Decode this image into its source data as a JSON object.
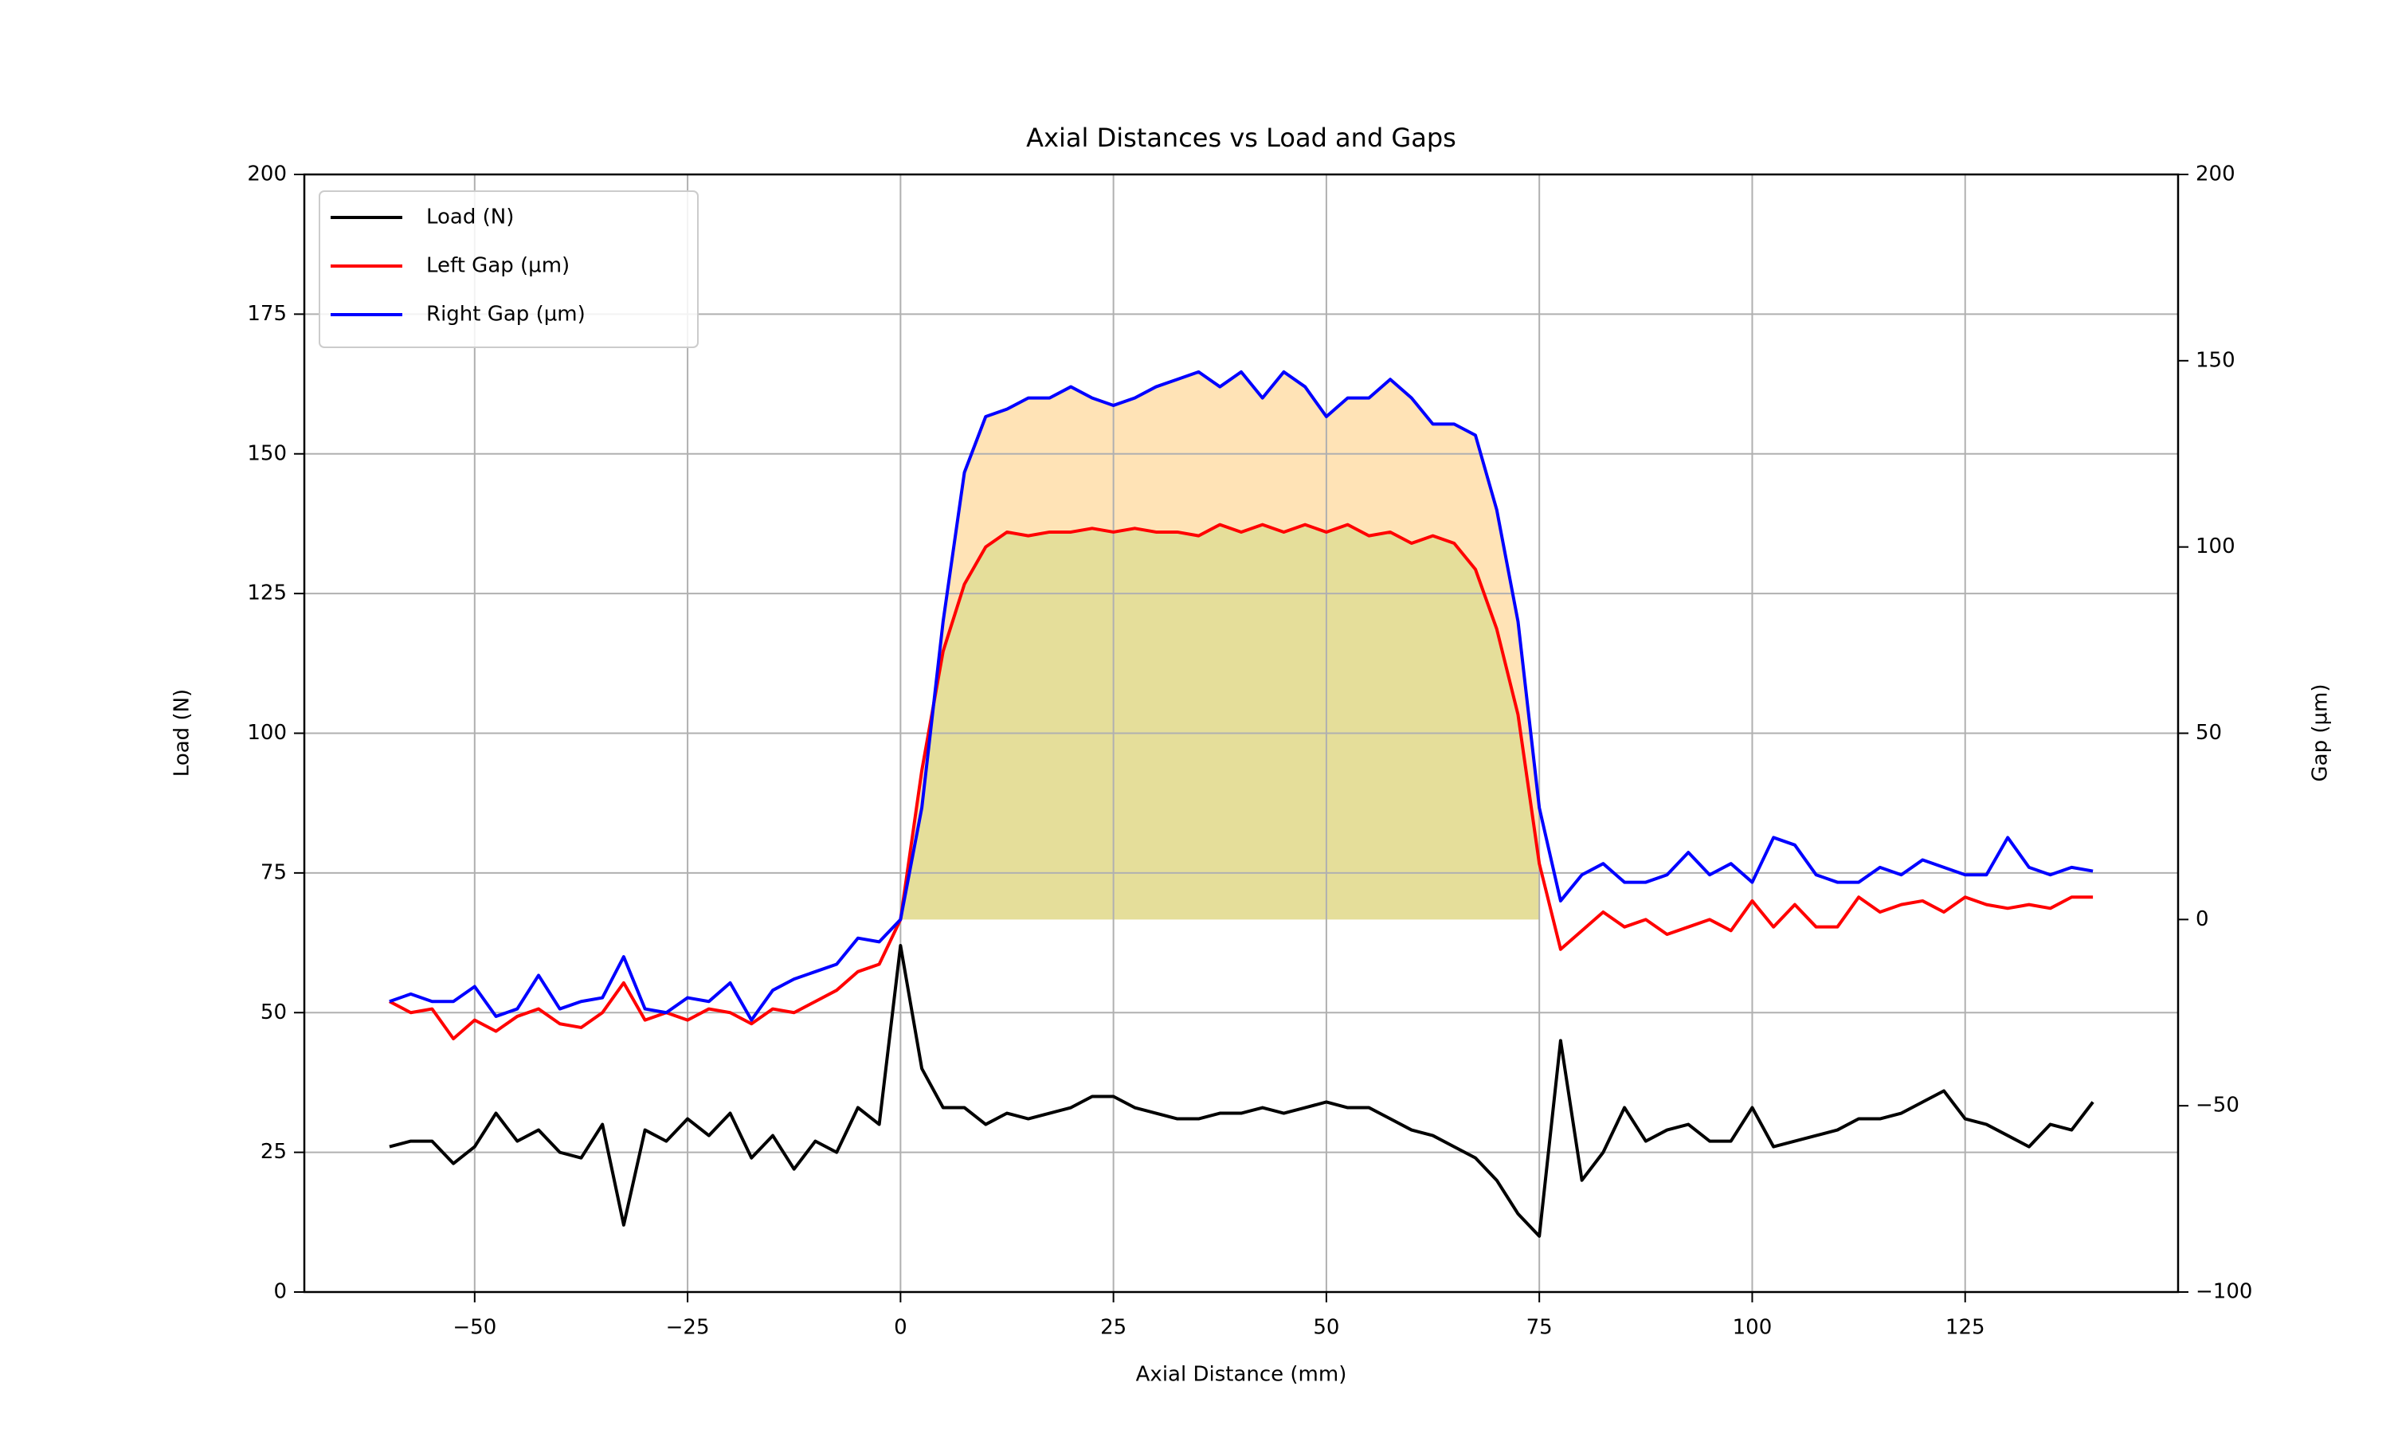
{
  "chart_data": {
    "type": "line",
    "title": "Axial Distances vs Load and Gaps",
    "x_label": "Axial Distance (mm)",
    "y_label": "Load (N)",
    "y2_label": "Gap (µm)",
    "x": [
      -60,
      -57.5,
      -55,
      -52.5,
      -50,
      -47.5,
      -45,
      -42.5,
      -40,
      -37.5,
      -35,
      -32.5,
      -30,
      -27.5,
      -25,
      -22.5,
      -20,
      -17.5,
      -15,
      -12.5,
      -10,
      -7.5,
      -5,
      -2.5,
      0,
      2.5,
      5,
      7.5,
      10,
      12.5,
      15,
      17.5,
      20,
      22.5,
      25,
      27.5,
      30,
      32.5,
      35,
      37.5,
      40,
      42.5,
      45,
      47.5,
      50,
      52.5,
      55,
      57.5,
      60,
      62.5,
      65,
      67.5,
      70,
      72.5,
      75,
      77.5,
      80,
      82.5,
      85,
      87.5,
      90,
      92.5,
      95,
      97.5,
      100,
      102.5,
      105,
      107.5,
      110,
      112.5,
      115,
      117.5,
      120,
      122.5,
      125,
      127.5,
      130,
      132.5,
      135,
      137.5,
      140
    ],
    "series": [
      {
        "name": "Load (N)",
        "color": "#000000",
        "axis": "y",
        "values": [
          26,
          27,
          27,
          23,
          26,
          32,
          27,
          29,
          25,
          24,
          30,
          12,
          29,
          27,
          31,
          28,
          32,
          24,
          28,
          22,
          27,
          25,
          33,
          30,
          62,
          40,
          33,
          33,
          30,
          32,
          31,
          32,
          33,
          35,
          35,
          33,
          32,
          31,
          31,
          32,
          32,
          33,
          32,
          33,
          34,
          33,
          33,
          31,
          29,
          28,
          26,
          24,
          20,
          14,
          10,
          45,
          20,
          25,
          33,
          27,
          29,
          30,
          27,
          27,
          33,
          26,
          27,
          28,
          29,
          31,
          31,
          32,
          34,
          36,
          31,
          30,
          28,
          26,
          30,
          29,
          34
        ]
      },
      {
        "name": "Left Gap (µm)",
        "color": "#ff0000",
        "axis": "y2",
        "values": [
          -22,
          -25,
          -24,
          -32,
          -27,
          -30,
          -26,
          -24,
          -28,
          -29,
          -25,
          -17,
          -27,
          -25,
          -27,
          -24,
          -25,
          -28,
          -24,
          -25,
          -22,
          -19,
          -14,
          -12,
          0,
          40,
          72,
          90,
          100,
          104,
          103,
          104,
          104,
          105,
          104,
          105,
          104,
          104,
          103,
          106,
          104,
          106,
          104,
          106,
          104,
          106,
          103,
          104,
          101,
          103,
          101,
          94,
          78,
          55,
          15,
          -8,
          -3,
          2,
          -2,
          0,
          -4,
          -2,
          0,
          -3,
          5,
          -2,
          4,
          -2,
          -2,
          6,
          2,
          4,
          5,
          2,
          6,
          4,
          3,
          4,
          3,
          6,
          6
        ]
      },
      {
        "name": "Right Gap (µm)",
        "color": "#0000ff",
        "axis": "y2",
        "values": [
          -22,
          -20,
          -22,
          -22,
          -18,
          -26,
          -24,
          -15,
          -24,
          -22,
          -21,
          -10,
          -24,
          -25,
          -21,
          -22,
          -17,
          -27,
          -19,
          -16,
          -14,
          -12,
          -5,
          -6,
          0,
          30,
          80,
          120,
          135,
          137,
          140,
          140,
          143,
          140,
          138,
          140,
          143,
          145,
          147,
          143,
          147,
          140,
          147,
          143,
          135,
          140,
          140,
          145,
          140,
          133,
          133,
          130,
          110,
          80,
          30,
          5,
          12,
          15,
          10,
          10,
          12,
          18,
          12,
          15,
          10,
          22,
          20,
          12,
          10,
          10,
          14,
          12,
          16,
          14,
          12,
          12,
          22,
          14,
          12,
          14,
          13
        ]
      }
    ],
    "fill_between": {
      "from": 0,
      "to": 75,
      "colors": [
        "#e5de9a",
        "#ffe3b6"
      ]
    },
    "xlim": [
      -70,
      150
    ],
    "ylim": [
      0,
      200
    ],
    "y2lim": [
      -100,
      200
    ],
    "xticks": [
      {
        "value": -50,
        "label": "−50"
      },
      {
        "value": -25,
        "label": "−25"
      },
      0,
      25,
      50,
      75,
      100,
      125
    ],
    "yticks": [
      0,
      25,
      50,
      75,
      100,
      125,
      150,
      175,
      200
    ],
    "y2ticks": [
      {
        "value": -100,
        "label": "−100"
      },
      {
        "value": -50,
        "label": "−50"
      },
      0,
      50,
      100,
      150,
      200
    ],
    "y2_color": "#ff0000",
    "grid": true,
    "legend": "upper left"
  }
}
